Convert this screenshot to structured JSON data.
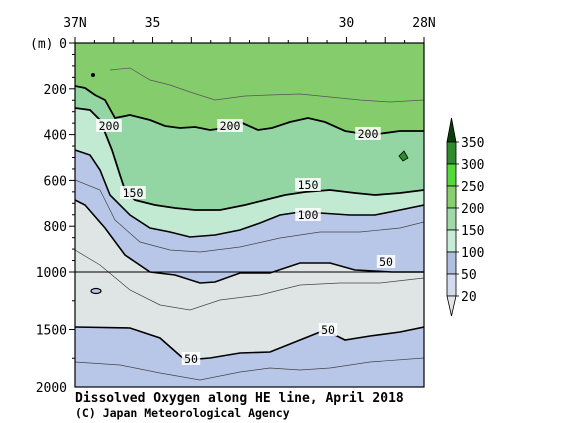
{
  "chart_data": {
    "type": "contour",
    "title": "Dissolved Oxygen along HE line, April 2018",
    "credit": "(C) Japan Meteorological Agency",
    "y_unit": "(m)",
    "x_ticks": [
      "37N",
      "35",
      "30",
      "28N"
    ],
    "x_range": [
      37,
      28
    ],
    "y_ticks": [
      "0",
      "200",
      "400",
      "600",
      "800",
      "1000",
      "1500",
      "2000"
    ],
    "y_range": [
      0,
      2000
    ],
    "y_axis_break_depth": 1000,
    "contour_labels": [
      "200",
      "200",
      "200",
      "150",
      "150",
      "100",
      "50",
      "50",
      "50"
    ],
    "colorbar": {
      "ticks": [
        "350",
        "300",
        "250",
        "200",
        "150",
        "100",
        "50",
        "20"
      ],
      "colors": [
        "#0d3d0d",
        "#2e8b2e",
        "#55d93a",
        "#86d06e",
        "#9fd9a8",
        "#c6ecd6",
        "#b0bfe0",
        "#d5dbef",
        "#e0e6e6"
      ]
    },
    "palette": {
      "over_200": "#85cc6c",
      "band_150_200": "#93d6a3",
      "band_100_150": "#c2ead2",
      "band_50_100": "#b8c6e8",
      "band_below_50": "#dfe5e5"
    }
  }
}
